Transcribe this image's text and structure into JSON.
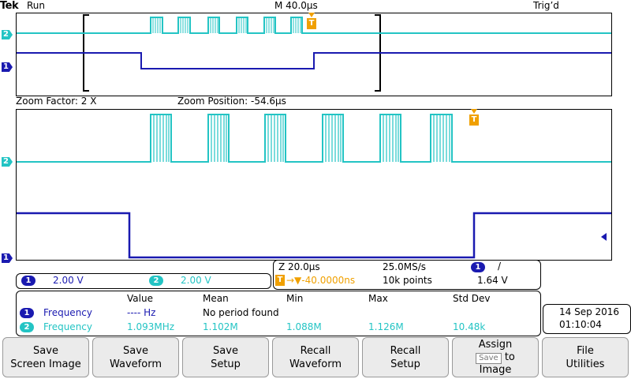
{
  "status": {
    "brand": "Tek",
    "run_state": "Run",
    "timebase": "M 40.0µs",
    "trigger_state": "Trig’d"
  },
  "zoom": {
    "factor": "Zoom Factor: 2 X",
    "position": "Zoom Position: -54.6µs"
  },
  "markers": {
    "ch1": "1",
    "ch2": "2",
    "trigger": "T"
  },
  "channel_scales": {
    "ch1_num": "1",
    "ch1_scale": "2.00 V",
    "ch2_num": "2",
    "ch2_scale": "2.00 V"
  },
  "timing": {
    "zoom_timebase": "Z 20.0µs",
    "sample_rate": "25.0MS/s",
    "trig_channel": "1",
    "trig_slope": "/",
    "trig_position": "→▼-40.0000ns",
    "record_length": "10k points",
    "trig_level": "1.64 V"
  },
  "measurements": {
    "headers": [
      "Value",
      "Mean",
      "Min",
      "Max",
      "Std Dev"
    ],
    "rows": [
      {
        "ch": "1",
        "name": "Frequency",
        "value": "---- Hz",
        "mean": "No period found",
        "min": "",
        "max": "",
        "std": ""
      },
      {
        "ch": "2",
        "name": "Frequency",
        "value": "1.093MHz",
        "mean": "1.102M",
        "min": "1.088M",
        "max": "1.126M",
        "std": "10.48k"
      }
    ]
  },
  "clock": {
    "date": "14 Sep  2016",
    "time": "01:10:04"
  },
  "softkeys": {
    "save_screen_1": "Save",
    "save_screen_2": "Screen Image",
    "save_waveform_1": "Save",
    "save_waveform_2": "Waveform",
    "save_setup_1": "Save",
    "save_setup_2": "Setup",
    "recall_waveform_1": "Recall",
    "recall_waveform_2": "Waveform",
    "recall_setup_1": "Recall",
    "recall_setup_2": "Setup",
    "assign_1": "Assign",
    "assign_key": "Save",
    "assign_to": "to",
    "assign_3": "Image",
    "file_1": "File",
    "file_2": "Utilities"
  },
  "colors": {
    "ch1": "#1a1ab0",
    "ch2": "#23c4c4",
    "trigger": "#f0a000"
  }
}
